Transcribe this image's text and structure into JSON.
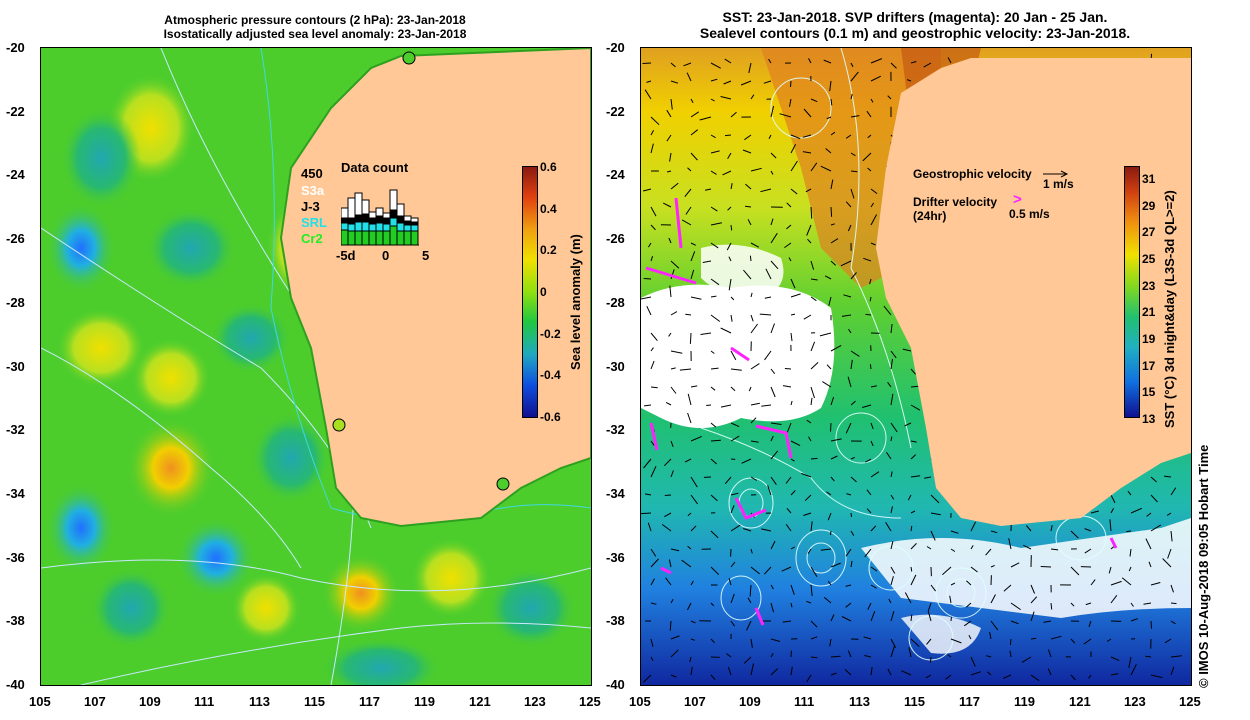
{
  "left_panel": {
    "title_line1": "Atmospheric pressure contours (2 hPa): 23-Jan-2018",
    "title_line2": "Isostatically adjusted sea level anomaly: 23-Jan-2018",
    "y_ticks": [
      "-20",
      "-22",
      "-24",
      "-26",
      "-28",
      "-30",
      "-32",
      "-34",
      "-36",
      "-38",
      "-40"
    ],
    "x_ticks": [
      "105",
      "107",
      "109",
      "111",
      "113",
      "115",
      "117",
      "119",
      "121",
      "123",
      "125"
    ],
    "colorbar": {
      "label": "Sea level anomaly (m)",
      "ticks": [
        "0.6",
        "0.4",
        "0.2",
        "0",
        "-0.2",
        "-0.4",
        "-0.6"
      ]
    },
    "data_count": {
      "title": "Data count",
      "max_label": "450",
      "x_ticks": [
        "-5d",
        "0",
        "5"
      ],
      "satellites": [
        {
          "name": "S3a",
          "color": "#ffffff"
        },
        {
          "name": "J-3",
          "color": "#000000"
        },
        {
          "name": "SRL",
          "color": "#22e0e8"
        },
        {
          "name": "Cr2",
          "color": "#22cc22"
        }
      ]
    },
    "colors": {
      "land": "#ffc896",
      "sea_green": "#4ccd2c"
    }
  },
  "right_panel": {
    "title_line1": "SST: 23-Jan-2018. SVP drifters (magenta): 20 Jan - 25 Jan.",
    "title_line2": "Sealevel contours (0.1 m) and geostrophic velocity: 23-Jan-2018.",
    "y_ticks": [
      "-20",
      "-22",
      "-24",
      "-26",
      "-28",
      "-30",
      "-32",
      "-34",
      "-36",
      "-38",
      "-40"
    ],
    "x_ticks": [
      "105",
      "107",
      "109",
      "111",
      "113",
      "115",
      "117",
      "119",
      "121",
      "123",
      "125"
    ],
    "legend": {
      "geostrophic_label": "Geostrophic velocity",
      "geostrophic_scale": "1 m/s",
      "drifter_label": "Drifter velocity",
      "drifter_sub": "(24hr)",
      "drifter_scale": "0.5 m/s",
      "drifter_symbol": ">"
    },
    "colorbar": {
      "label": "SST (°C) 3d night&day (L3S-3d QL>=2)",
      "ticks": [
        "31",
        "29",
        "27",
        "25",
        "23",
        "21",
        "19",
        "17",
        "15",
        "13"
      ]
    },
    "colors": {
      "land": "#ffc896",
      "drifter": "#ff22ff"
    }
  },
  "credit": "© IMOS 10-Aug-2018 09:05 Hobart Time"
}
